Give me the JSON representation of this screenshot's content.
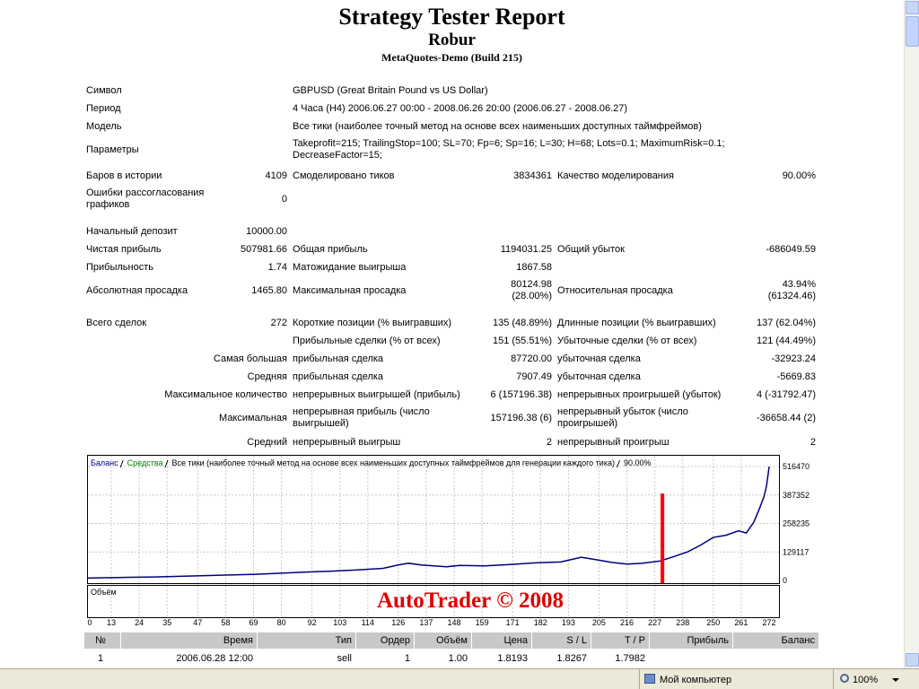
{
  "header": {
    "title": "Strategy Tester Report",
    "expert": "Robur",
    "server": "MetaQuotes-Demo (Build 215)"
  },
  "info": [
    {
      "label": "Символ",
      "value": "GBPUSD (Great Britain Pound vs US Dollar)"
    },
    {
      "label": "Период",
      "value": "4 Часа (H4) 2006.06.27 00:00 - 2008.06.26 20:00 (2006.06.27 - 2008.06.27)"
    },
    {
      "label": "Модель",
      "value": "Все тики (наиболее точный метод на основе всех наименьших доступных таймфреймов)"
    },
    {
      "label": "Параметры",
      "value": "Takeprofit=215; TrailingStop=100; SL=70; Fp=6; Sp=16; L=30; H=68; Lots=0.1; MaximumRisk=0.1; DecreaseFactor=15;"
    }
  ],
  "stats": [
    {
      "c1": "Баров в истории",
      "v1": "4109",
      "c2": "Смоделировано тиков",
      "v2": "3834361",
      "c3": "Качество моделирования",
      "v3": "90.00%"
    },
    {
      "c1": "Ошибки рассогласования графиков",
      "v1": "0"
    },
    {
      "c1": "Начальный депозит",
      "v1": "10000.00"
    },
    {
      "c1": "Чистая прибыль",
      "v1": "507981.66",
      "c2": "Общая прибыль",
      "v2": "1194031.25",
      "c3": "Общий убыток",
      "v3": "-686049.59"
    },
    {
      "c1": "Прибыльность",
      "v1": "1.74",
      "c2": "Матожидание выигрыша",
      "v2": "1867.58"
    },
    {
      "c1": "Абсолютная просадка",
      "v1": "1465.80",
      "c2": "Максимальная просадка",
      "v2": "80124.98 (28.00%)",
      "c3": "Относительная просадка",
      "v3": "43.94% (61324.46)"
    },
    {
      "c1": "Всего сделок",
      "v1": "272",
      "c2": "Короткие позиции (% выигравших)",
      "v2": "135 (48.89%)",
      "c3": "Длинные позиции (% выигравших)",
      "v3": "137 (62.04%)"
    },
    {
      "c2": "Прибыльные сделки (% от всех)",
      "v2": "151 (55.51%)",
      "c3": "Убыточные сделки (% от всех)",
      "v3": "121 (44.49%)"
    },
    {
      "c1": "Самая большая",
      "c2": "прибыльная сделка",
      "v2": "87720.00",
      "c3": "убыточная сделка",
      "v3": "-32923.24"
    },
    {
      "c1": "Средняя",
      "c2": "прибыльная сделка",
      "v2": "7907.49",
      "c3": "убыточная сделка",
      "v3": "-5669.83"
    },
    {
      "c1": "Максимальное количество",
      "c2": "непрерывных выигрышей (прибыль)",
      "v2": "6 (157196.38)",
      "c3": "непрерывных проигрышей (убыток)",
      "v3": "4 (-31792.47)"
    },
    {
      "c1": "Максимальная",
      "c2": "непрерывная прибыль (число выигрышей)",
      "v2": "157196.38 (6)",
      "c3": "непрерывный убыток (число проигрышей)",
      "v3": "-36658.44 (2)"
    },
    {
      "c1": "Средний",
      "c2": "непрерывный выигрыш",
      "v2": "2",
      "c3": "непрерывный проигрыш",
      "v3": "2"
    }
  ],
  "chart": {
    "type": "line",
    "legend": [
      "Баланс",
      "Средства",
      "Все тики (наиболее точный метод на основе всех наименьших доступных таймфреймов для генерации каждого тика)",
      "90.00%"
    ],
    "legend_colors": [
      "#000080",
      "#008000",
      "#000000",
      "#000000"
    ],
    "volume_label": "Объём",
    "watermark": "AutoTrader © 2008",
    "xticks": [
      0,
      13,
      24,
      35,
      47,
      58,
      69,
      80,
      92,
      103,
      114,
      126,
      137,
      148,
      159,
      171,
      182,
      193,
      205,
      216,
      227,
      238,
      250,
      261,
      272
    ],
    "yticks": [
      0,
      129117,
      258235,
      387352,
      516470
    ],
    "grid": true,
    "series": [
      {
        "name": "Баланс",
        "color": "#000080",
        "x": [
          0,
          10,
          20,
          30,
          40,
          50,
          60,
          70,
          80,
          90,
          100,
          110,
          120,
          126,
          130,
          135,
          140,
          145,
          150,
          160,
          170,
          180,
          190,
          198,
          205,
          210,
          216,
          222,
          229,
          235,
          240,
          245,
          250,
          255,
          260,
          263,
          266,
          268,
          270,
          271,
          272
        ],
        "values": [
          10000,
          12000,
          14000,
          16000,
          19000,
          22000,
          25000,
          28000,
          33000,
          38000,
          42000,
          48000,
          55000,
          70000,
          78000,
          70000,
          66000,
          62000,
          68000,
          66000,
          72000,
          80000,
          84000,
          105000,
          92000,
          82000,
          74000,
          78000,
          88000,
          110000,
          130000,
          160000,
          195000,
          205000,
          225000,
          215000,
          265000,
          320000,
          380000,
          430000,
          516000
        ]
      }
    ],
    "marker": {
      "x": 230,
      "value": 394000,
      "color": "#ff0000"
    }
  },
  "orders": {
    "columns": [
      "№",
      "Время",
      "Тип",
      "Ордер",
      "Объём",
      "Цена",
      "S / L",
      "T / P",
      "Прибыль",
      "Баланс"
    ],
    "rows": [
      [
        "1",
        "2006.06.28 12:00",
        "sell",
        "1",
        "1.00",
        "1.8193",
        "1.8267",
        "1.7982"
      ]
    ]
  },
  "status_bar": {
    "zone": "Мой компьютер",
    "zoom": "100%"
  }
}
